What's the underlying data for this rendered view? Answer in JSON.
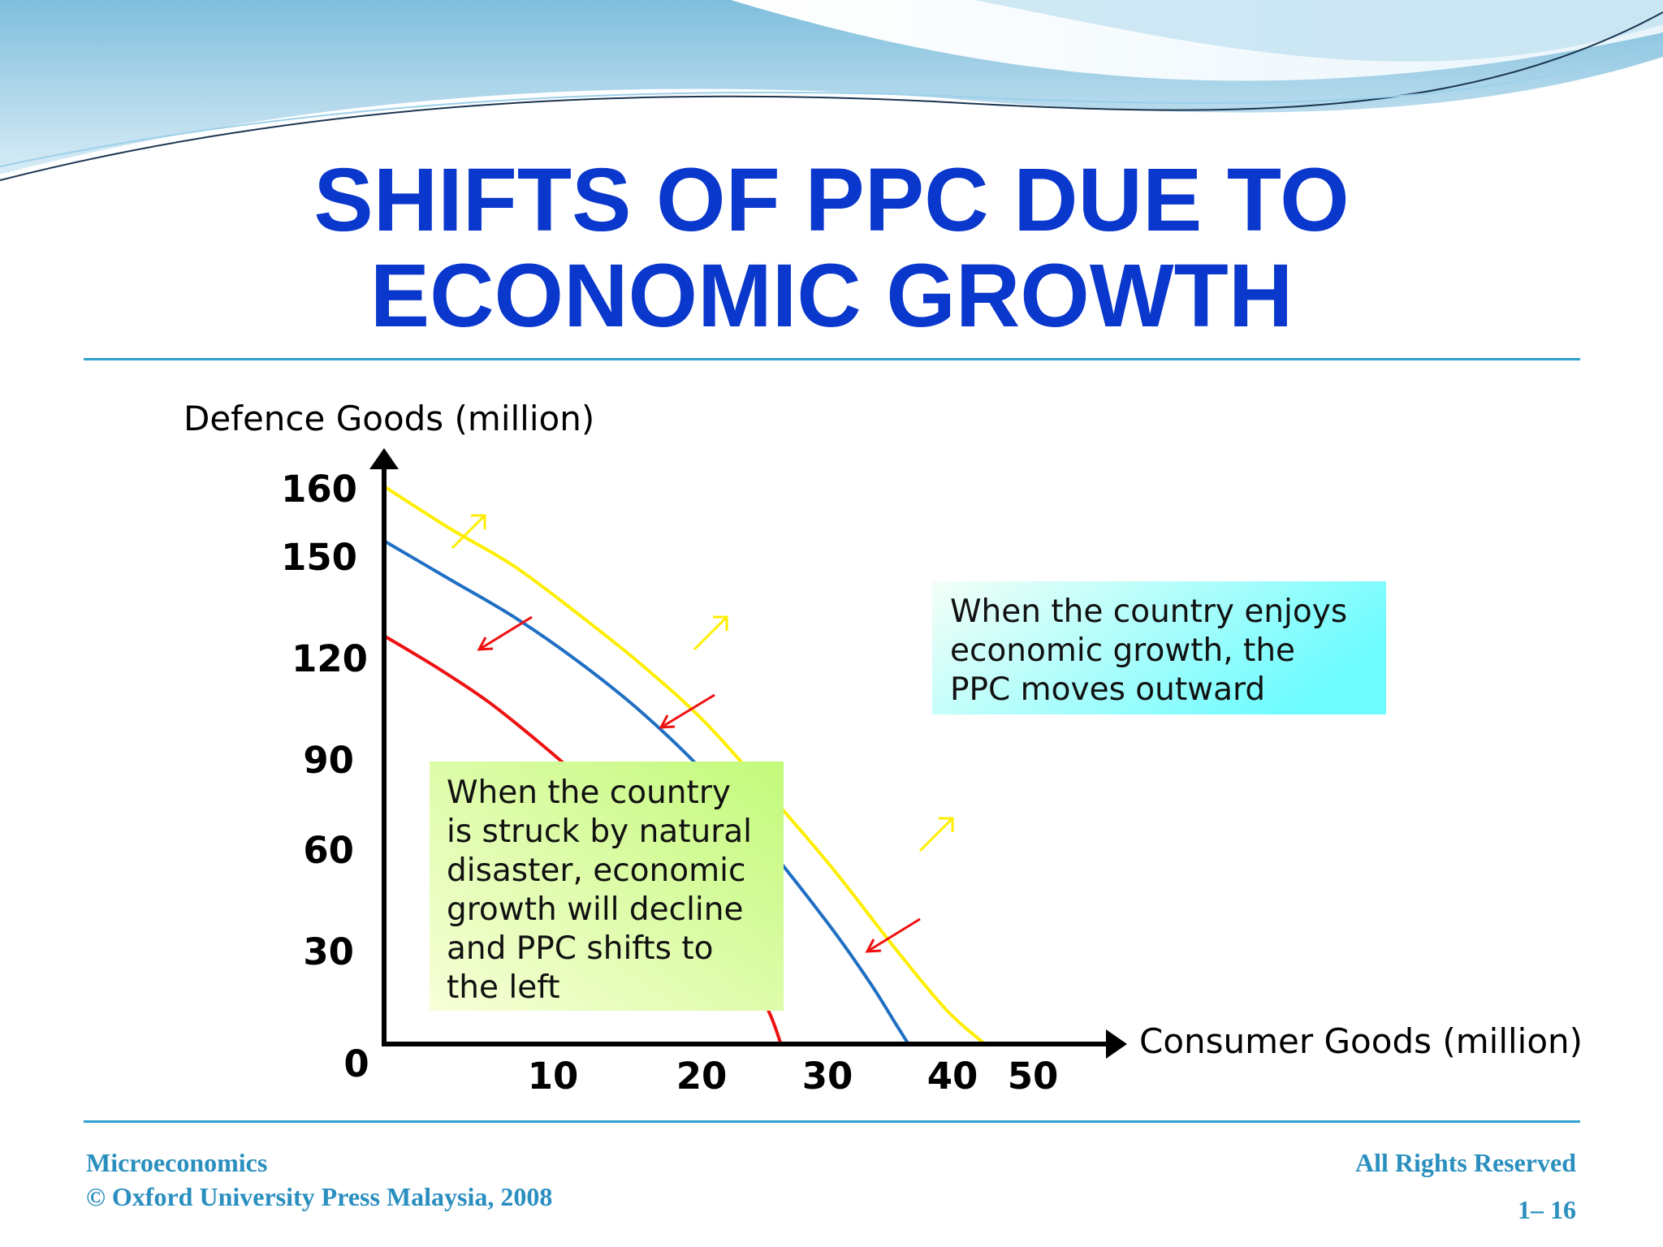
{
  "slide": {
    "title_lines": [
      "SHIFTS OF PPC DUE TO",
      "ECONOMIC GROWTH"
    ]
  },
  "chart_data": {
    "type": "line",
    "title": "SHIFTS OF PPC DUE TO ECONOMIC GROWTH",
    "xlabel": "Consumer Goods (million)",
    "ylabel": "Defence Goods (million)",
    "x_ticks": [
      "10",
      "20",
      "30",
      "40",
      "50"
    ],
    "y_ticks": [
      "160",
      "150",
      "120",
      "90",
      "60",
      "30"
    ],
    "origin_label": "0",
    "series": [
      {
        "color": "#ffee00",
        "points": [
          [
            0,
            164
          ],
          [
            5,
            152
          ],
          [
            10,
            141
          ],
          [
            15,
            127
          ],
          [
            20,
            112
          ],
          [
            25,
            95
          ],
          [
            30,
            74
          ],
          [
            35,
            52
          ],
          [
            40,
            28
          ],
          [
            44,
            10
          ],
          [
            47,
            0
          ]
        ]
      },
      {
        "color": "#1f6fc4",
        "points": [
          [
            0,
            148
          ],
          [
            5,
            137
          ],
          [
            10,
            126
          ],
          [
            15,
            113
          ],
          [
            20,
            98
          ],
          [
            25,
            80
          ],
          [
            30,
            58
          ],
          [
            35,
            34
          ],
          [
            38,
            18
          ],
          [
            40,
            6
          ],
          [
            41,
            0
          ]
        ]
      },
      {
        "color": "#ee1111",
        "points": [
          [
            0,
            120
          ],
          [
            4,
            111
          ],
          [
            8,
            101
          ],
          [
            12,
            89
          ],
          [
            16,
            76
          ],
          [
            20,
            62
          ],
          [
            24,
            44
          ],
          [
            28,
            23
          ],
          [
            30,
            10
          ],
          [
            31,
            0
          ]
        ]
      }
    ],
    "annotations": [
      {
        "lines": [
          "When the country enjoys",
          "economic growth, the",
          "PPC moves outward"
        ],
        "gradient": [
          "#f4fff7",
          "#6ffcff"
        ]
      },
      {
        "lines": [
          "When the country",
          "is struck by natural",
          "disaster, economic",
          "growth will decline",
          "and PPC shifts to",
          "the left"
        ],
        "gradient": [
          "#f8ffd8",
          "#c2f97a"
        ]
      }
    ],
    "arrow_colors": {
      "outward": "#ffee00",
      "inward": "#ee1111"
    }
  },
  "footer": {
    "left_line1": "Microeconomics",
    "left_line2": "© Oxford University Press Malaysia, 2008",
    "right_line1": "All Rights Reserved",
    "right_line2": "1– 16"
  }
}
